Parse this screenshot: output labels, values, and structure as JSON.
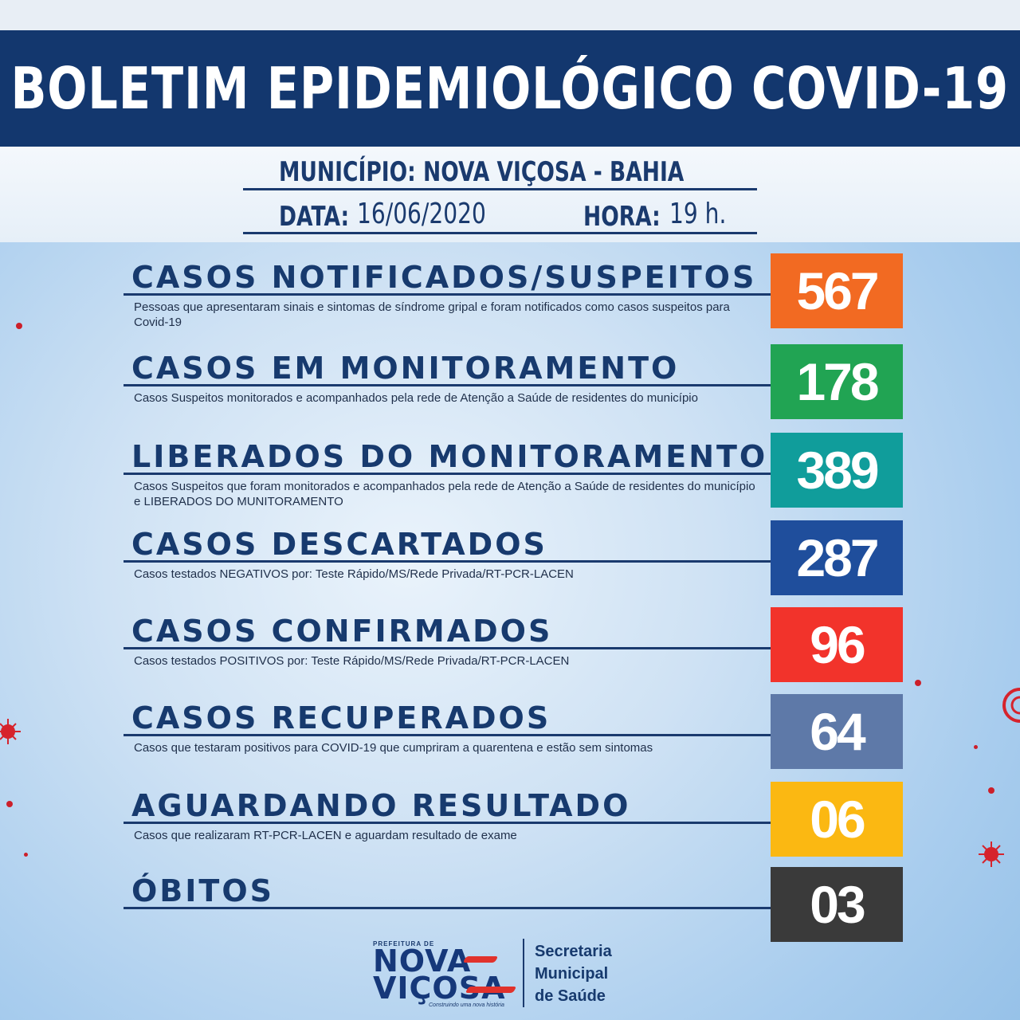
{
  "header": {
    "title": "BOLETIM EPIDEMIOLÓGICO COVID-19"
  },
  "info": {
    "municipio": "MUNICÍPIO: NOVA VIÇOSA - BAHIA",
    "data_label": "DATA:",
    "data_value": "16/06/2020",
    "hora_label": "HORA:",
    "hora_value": "19 h."
  },
  "rows": [
    {
      "title": "CASOS NOTIFICADOS/SUSPEITOS",
      "desc": "Pessoas que apresentaram sinais e sintomas de síndrome gripal e foram notificados como casos suspeitos para Covid-19",
      "value": "567",
      "color": "#f26a22"
    },
    {
      "title": "CASOS EM MONITORAMENTO",
      "desc": "Casos Suspeitos monitorados e acompanhados pela rede de Atenção a Saúde de residentes do município",
      "value": "178",
      "color": "#21a453"
    },
    {
      "title": "LIBERADOS DO MONITORAMENTO",
      "desc": "Casos Suspeitos que foram monitorados e acompanhados pela rede de Atenção a Saúde de residentes do município e LIBERADOS DO MUNITORAMENTO",
      "value": "389",
      "color": "#109d9b"
    },
    {
      "title": "CASOS DESCARTADOS",
      "desc": "Casos testados NEGATIVOS por: Teste Rápido/MS/Rede Privada/RT-PCR-LACEN",
      "value": "287",
      "color": "#1f4e9c"
    },
    {
      "title": "CASOS CONFIRMADOS",
      "desc": "Casos testados POSITIVOS por: Teste Rápido/MS/Rede Privada/RT-PCR-LACEN",
      "value": "96",
      "color": "#f2332b"
    },
    {
      "title": "CASOS RECUPERADOS",
      "desc": "Casos que testaram positivos para COVID-19 que cumpriram a quarentena e estão sem sintomas",
      "value": "64",
      "color": "#5e79a8"
    },
    {
      "title": "AGUARDANDO RESULTADO",
      "desc": "Casos que realizaram RT-PCR-LACEN e aguardam resultado de exame",
      "value": "06",
      "color": "#fbb812"
    },
    {
      "title": "ÓBITOS",
      "desc": "",
      "value": "03",
      "color": "#3a3a3a"
    }
  ],
  "footer": {
    "logo_top": "PREFEITURA DE",
    "logo_line1": "NOVA",
    "logo_line2": "VIÇOSA",
    "logo_tagline": "Construindo uma nova história",
    "sec_line1": "Secretaria",
    "sec_line2": "Municipal",
    "sec_line3": "de Saúde"
  }
}
